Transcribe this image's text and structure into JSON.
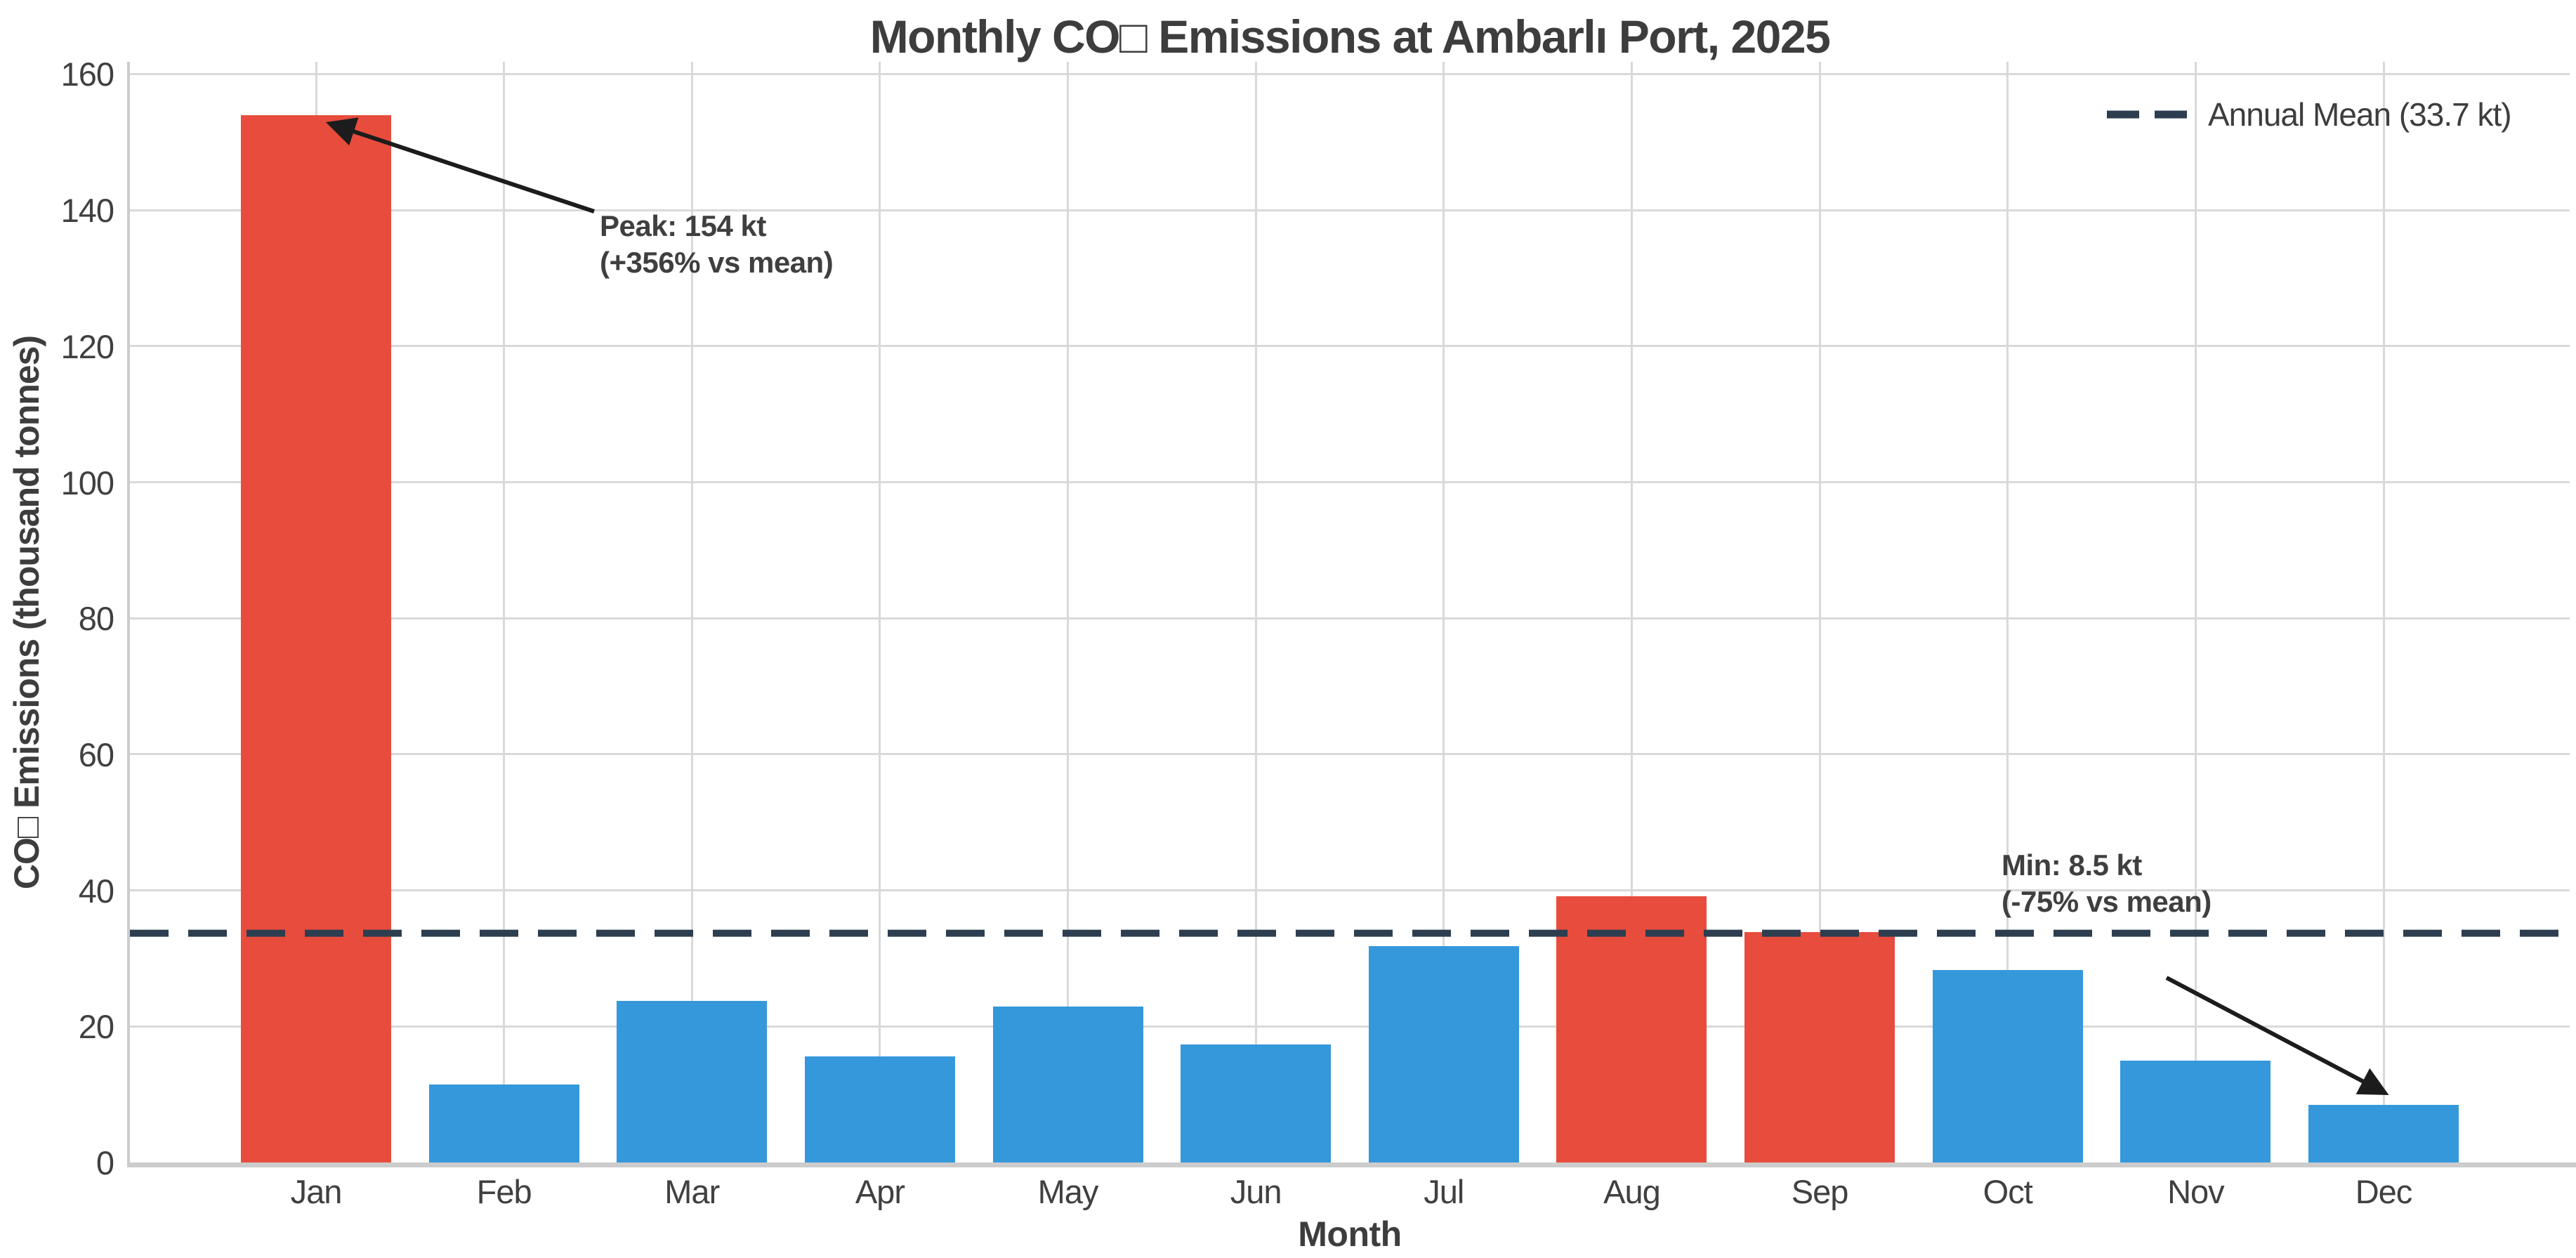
{
  "chart_data": {
    "type": "bar",
    "title": "Monthly CO□ Emissions at Ambarlı Port, 2025",
    "xlabel": "Month",
    "ylabel": "CO□ Emissions (thousand tonnes)",
    "categories": [
      "Jan",
      "Feb",
      "Mar",
      "Apr",
      "May",
      "Jun",
      "Jul",
      "Aug",
      "Sep",
      "Oct",
      "Nov",
      "Dec"
    ],
    "values": [
      154,
      11.5,
      23.8,
      15.6,
      22.9,
      17.3,
      31.8,
      39.1,
      33.9,
      28.3,
      15.0,
      8.5
    ],
    "ylim": [
      0,
      161.8
    ],
    "yticks": [
      0,
      20,
      40,
      60,
      80,
      100,
      120,
      140,
      160
    ],
    "ytick_labels": [
      "0",
      "20",
      "40",
      "60",
      "80",
      "100",
      "120",
      "140",
      "160"
    ],
    "grid": true,
    "mean_line": {
      "value": 33.7,
      "label": "Annual Mean (33.7 kt)",
      "color": "#2c3e50",
      "style": "dashed"
    },
    "colors": {
      "above_mean": "#e74c3c",
      "below_mean": "#3498db",
      "grid": "#d9d9d9",
      "spine": "#cccccc",
      "text": "#3f3f3f",
      "arrow": "#1c1c1c"
    },
    "legend": {
      "position": "upper right",
      "entries": [
        {
          "label": "Annual Mean (33.7 kt)",
          "color": "#2c3e50",
          "style": "dashed"
        }
      ]
    },
    "annotations": [
      {
        "id": "peak",
        "lines": [
          "Peak: 154 kt",
          "(+356% vs mean)"
        ],
        "points_to": "Jan"
      },
      {
        "id": "min",
        "lines": [
          "Min: 8.5 kt",
          "(-75% vs mean)"
        ],
        "points_to": "Dec"
      }
    ]
  }
}
